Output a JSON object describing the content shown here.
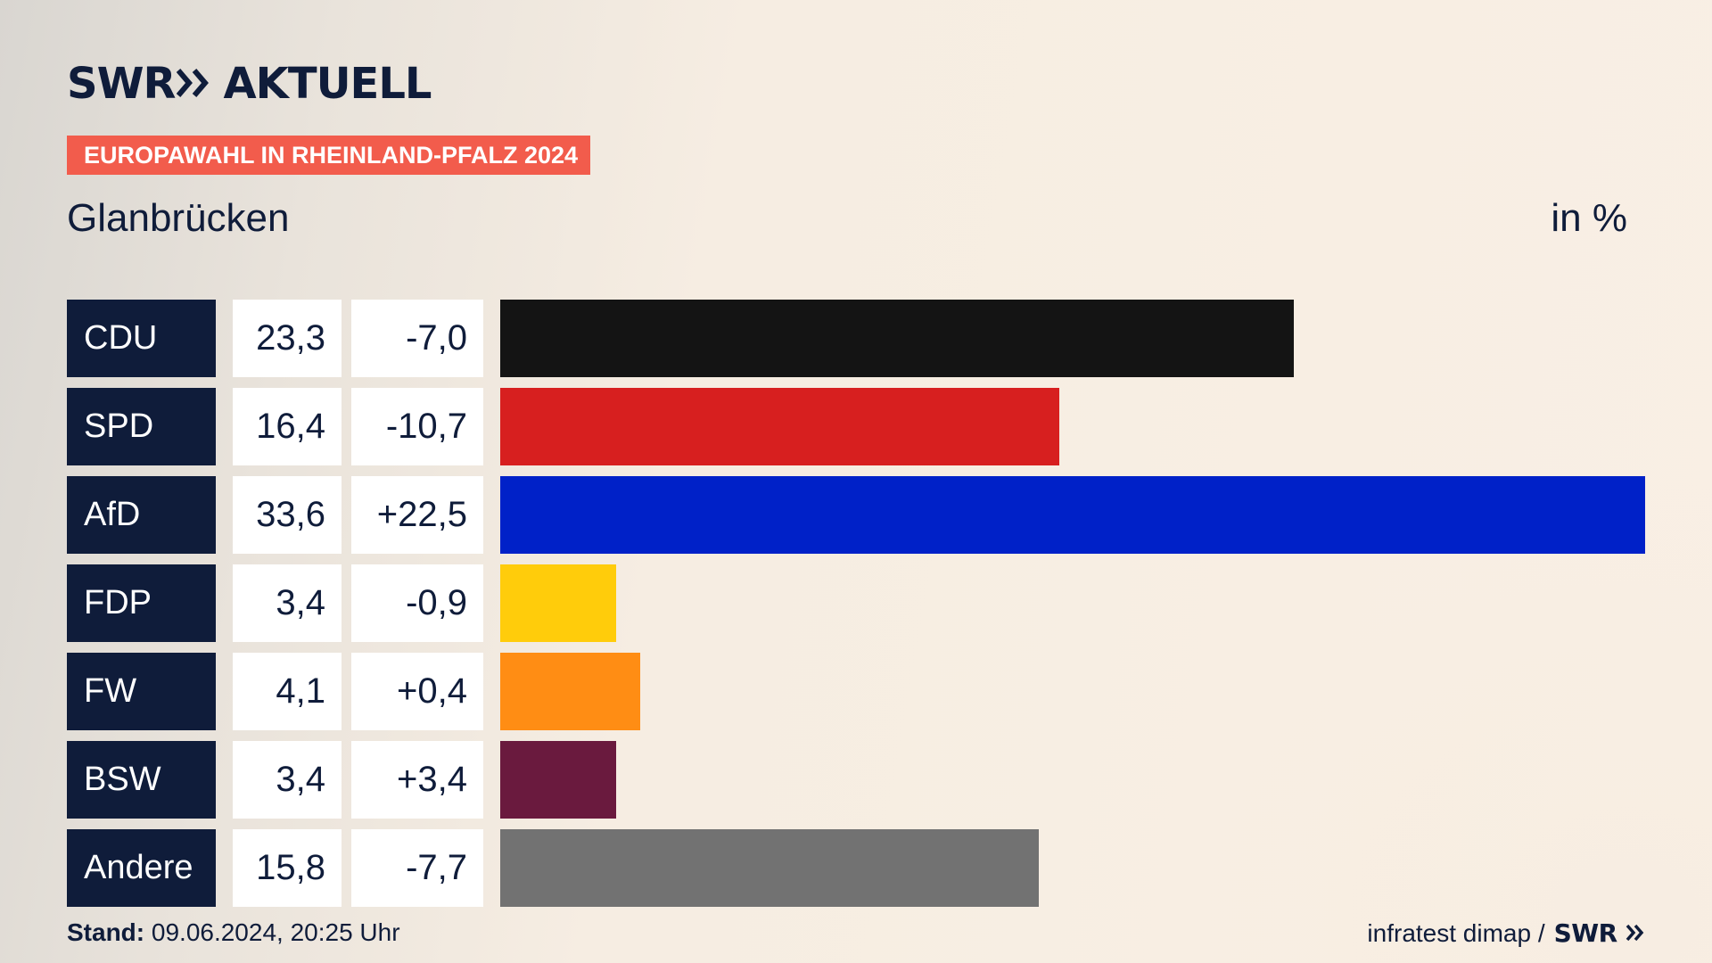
{
  "brand": {
    "logo_text": "SWR",
    "logo_suffix": "AKTUELL",
    "mini_logo": "SWR"
  },
  "header": {
    "tag": "EUROPAWAHL IN RHEINLAND-PFALZ 2024",
    "subtitle": "Glanbrücken",
    "unit": "in %"
  },
  "footer": {
    "stand_label": "Stand:",
    "stand_value": "09.06.2024, 20:25 Uhr",
    "source": "infratest dimap /"
  },
  "colors": {
    "navy": "#0f1c3a",
    "tag": "#f25c4c"
  },
  "chart_data": {
    "type": "bar",
    "orientation": "horizontal",
    "categories": [
      "CDU",
      "SPD",
      "AfD",
      "FDP",
      "FW",
      "BSW",
      "Andere"
    ],
    "values": [
      23.3,
      16.4,
      33.6,
      3.4,
      4.1,
      3.4,
      15.8
    ],
    "value_labels": [
      "23,3",
      "16,4",
      "33,6",
      "3,4",
      "4,1",
      "3,4",
      "15,8"
    ],
    "diff_labels": [
      "-7,0",
      "-10,7",
      "+22,5",
      "-0,9",
      "+0,4",
      "+3,4",
      "-7,7"
    ],
    "colors": [
      "#141414",
      "#d71f1f",
      "#0021c8",
      "#ffcc0b",
      "#ff8d14",
      "#6a1a3e",
      "#727272"
    ],
    "xlim": [
      0,
      33.6
    ]
  }
}
